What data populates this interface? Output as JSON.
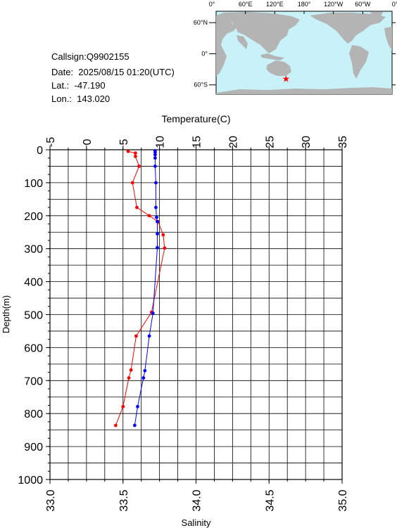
{
  "info": {
    "callsign": "Callsign:Q9902155",
    "date": "Date:  2025/08/15 01:20(UTC)",
    "lat": "Lat.:  -47.190",
    "lon": "Lon.:  143.020"
  },
  "map": {
    "top_labels": [
      "0°",
      "60°E",
      "120°E",
      "180°",
      "120°W",
      "60°W",
      "0°"
    ],
    "lat_labels": [
      "60°N",
      "0°",
      "60°S"
    ],
    "ocean_color": "#c8f2f8",
    "land_color": "#b4b4b4",
    "marker": {
      "lon": 143.02,
      "lat": -47.19,
      "color": "#ff0000",
      "icon": "star-icon"
    }
  },
  "chart_data": {
    "type": "line",
    "title": "",
    "top_axis": {
      "label": "Temperature(C)",
      "range": [
        -5,
        35
      ],
      "ticks": [
        "-5",
        "0",
        "5",
        "10",
        "15",
        "20",
        "25",
        "30",
        "35"
      ]
    },
    "bottom_axis": {
      "label": "Salinity",
      "range": [
        33.0,
        35.0
      ],
      "ticks": [
        "33.0",
        "33.5",
        "34.0",
        "34.5",
        "35.0"
      ]
    },
    "y_axis": {
      "label": "Depth(m)",
      "range": [
        0,
        1000
      ],
      "reversed": true,
      "ticks": [
        "0",
        "100",
        "200",
        "300",
        "400",
        "500",
        "600",
        "700",
        "800",
        "900",
        "1000"
      ]
    },
    "grid": true,
    "series": [
      {
        "quantity": "temperature",
        "color": "#ff0000",
        "axis": "top",
        "points": [
          [
            5.7,
            5
          ],
          [
            6.7,
            10
          ],
          [
            6.7,
            20
          ],
          [
            7.2,
            50
          ],
          [
            6.3,
            100
          ],
          [
            6.9,
            175
          ],
          [
            8.6,
            200
          ],
          [
            9.8,
            218
          ],
          [
            10.5,
            258
          ],
          [
            10.7,
            298
          ],
          [
            8.9,
            493
          ],
          [
            6.8,
            565
          ],
          [
            6.1,
            668
          ],
          [
            5.8,
            692
          ],
          [
            5.0,
            779
          ],
          [
            4.0,
            836
          ]
        ]
      },
      {
        "quantity": "salinity",
        "color": "#0000ff",
        "axis": "bottom",
        "points": [
          [
            33.72,
            3
          ],
          [
            33.72,
            8
          ],
          [
            33.72,
            15
          ],
          [
            33.72,
            25
          ],
          [
            33.72,
            50
          ],
          [
            33.725,
            100
          ],
          [
            33.725,
            175
          ],
          [
            33.73,
            205
          ],
          [
            33.735,
            218
          ],
          [
            33.735,
            255
          ],
          [
            33.735,
            297
          ],
          [
            33.705,
            496
          ],
          [
            33.68,
            565
          ],
          [
            33.65,
            670
          ],
          [
            33.64,
            692
          ],
          [
            33.6,
            779
          ],
          [
            33.58,
            836
          ]
        ]
      }
    ]
  }
}
